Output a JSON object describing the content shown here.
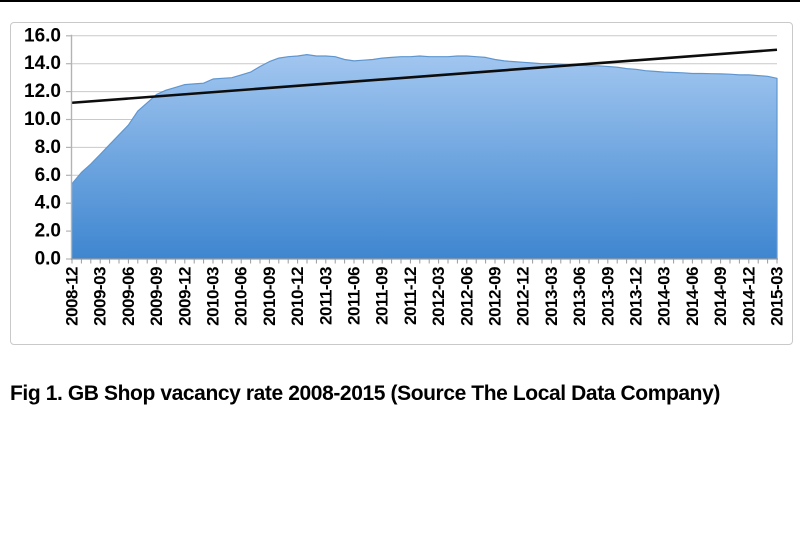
{
  "top_rule": {
    "color": "#000000"
  },
  "caption": {
    "text": "Fig 1. GB Shop vacancy rate 2008-2015 (Source The Local Data Company)"
  },
  "chart_data": {
    "type": "area",
    "title": "",
    "legend": "none",
    "grid": "horizontal",
    "ylim": [
      0,
      16
    ],
    "y_tick_labels": [
      "0.0",
      "2.0",
      "4.0",
      "6.0",
      "8.0",
      "10.0",
      "12.0",
      "14.0",
      "16.0"
    ],
    "x_tick_labels": [
      "2008-12",
      "2009-03",
      "2009-06",
      "2009-09",
      "2009-12",
      "2010-03",
      "2010-06",
      "2010-09",
      "2010-12",
      "2011-03",
      "2011-06",
      "2011-09",
      "2011-12",
      "2012-03",
      "2012-06",
      "2012-09",
      "2012-12",
      "2013-03",
      "2013-06",
      "2013-09",
      "2013-12",
      "2014-03",
      "2014-06",
      "2014-09",
      "2014-12",
      "2015-03"
    ],
    "months_per_labelled_tick": 3,
    "series": [
      {
        "name": "GB shop vacancy rate (%)",
        "type": "area",
        "interval": "monthly",
        "x_start": "2008-12",
        "x_end": "2015-03",
        "values": [
          5.4,
          6.2,
          6.8,
          7.5,
          8.2,
          8.9,
          9.6,
          10.6,
          11.2,
          11.8,
          12.1,
          12.3,
          12.5,
          12.55,
          12.6,
          12.9,
          12.95,
          13.0,
          13.2,
          13.4,
          13.8,
          14.15,
          14.4,
          14.5,
          14.55,
          14.65,
          14.55,
          14.55,
          14.5,
          14.3,
          14.2,
          14.25,
          14.3,
          14.4,
          14.45,
          14.5,
          14.5,
          14.55,
          14.5,
          14.5,
          14.5,
          14.55,
          14.55,
          14.5,
          14.45,
          14.3,
          14.2,
          14.15,
          14.1,
          14.05,
          14.0,
          14.0,
          13.95,
          13.9,
          13.9,
          13.85,
          13.85,
          13.8,
          13.75,
          13.65,
          13.6,
          13.5,
          13.45,
          13.4,
          13.37,
          13.35,
          13.3,
          13.3,
          13.28,
          13.27,
          13.25,
          13.2,
          13.2,
          13.15,
          13.1,
          12.95
        ]
      },
      {
        "name": "linear trend",
        "type": "line",
        "endpoint_values": [
          11.2,
          15.0
        ]
      }
    ],
    "colors": {
      "area_top": "#A9CBF2",
      "area_bottom": "#3E86D0",
      "area_edge": "#5F96CF",
      "trend_line": "#0D0D0D",
      "gridline": "#C9C9C9",
      "axis": "#B3B3B3",
      "tick": "#9B9B9B",
      "label": "#000000"
    }
  }
}
